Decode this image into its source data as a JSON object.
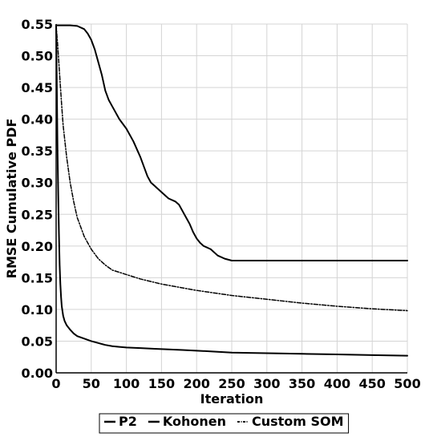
{
  "chart_data": {
    "type": "line",
    "title": "",
    "xlabel": "Iteration",
    "ylabel": "RMSE Cumulative PDF",
    "xlim": [
      0,
      500
    ],
    "ylim": [
      0,
      0.55
    ],
    "x_ticks": [
      "0",
      "50",
      "100",
      "150",
      "200",
      "250",
      "300",
      "350",
      "400",
      "450",
      "500"
    ],
    "y_ticks": [
      "0.00",
      "0.05",
      "0.10",
      "0.15",
      "0.20",
      "0.25",
      "0.30",
      "0.35",
      "0.40",
      "0.45",
      "0.50",
      "0.55"
    ],
    "grid": true,
    "legend_position": "bottom",
    "series": [
      {
        "name": "P2",
        "style": "solid",
        "points": [
          [
            0,
            0.548
          ],
          [
            10,
            0.548
          ],
          [
            20,
            0.548
          ],
          [
            30,
            0.547
          ],
          [
            40,
            0.542
          ],
          [
            45,
            0.535
          ],
          [
            50,
            0.525
          ],
          [
            55,
            0.51
          ],
          [
            60,
            0.49
          ],
          [
            65,
            0.47
          ],
          [
            70,
            0.445
          ],
          [
            75,
            0.43
          ],
          [
            80,
            0.42
          ],
          [
            90,
            0.4
          ],
          [
            100,
            0.385
          ],
          [
            110,
            0.365
          ],
          [
            120,
            0.34
          ],
          [
            125,
            0.325
          ],
          [
            130,
            0.31
          ],
          [
            135,
            0.3
          ],
          [
            140,
            0.295
          ],
          [
            150,
            0.285
          ],
          [
            160,
            0.275
          ],
          [
            170,
            0.27
          ],
          [
            175,
            0.265
          ],
          [
            180,
            0.255
          ],
          [
            185,
            0.245
          ],
          [
            190,
            0.235
          ],
          [
            195,
            0.222
          ],
          [
            200,
            0.212
          ],
          [
            205,
            0.205
          ],
          [
            210,
            0.2
          ],
          [
            220,
            0.195
          ],
          [
            230,
            0.185
          ],
          [
            240,
            0.18
          ],
          [
            250,
            0.177
          ],
          [
            300,
            0.177
          ],
          [
            350,
            0.177
          ],
          [
            400,
            0.177
          ],
          [
            450,
            0.177
          ],
          [
            500,
            0.177
          ]
        ]
      },
      {
        "name": "Kohonen",
        "style": "solid",
        "points": [
          [
            0,
            0.548
          ],
          [
            1,
            0.45
          ],
          [
            2,
            0.35
          ],
          [
            3,
            0.28
          ],
          [
            4,
            0.22
          ],
          [
            5,
            0.17
          ],
          [
            6,
            0.14
          ],
          [
            7,
            0.12
          ],
          [
            8,
            0.105
          ],
          [
            10,
            0.09
          ],
          [
            12,
            0.082
          ],
          [
            15,
            0.075
          ],
          [
            20,
            0.068
          ],
          [
            25,
            0.062
          ],
          [
            30,
            0.058
          ],
          [
            40,
            0.054
          ],
          [
            50,
            0.05
          ],
          [
            60,
            0.047
          ],
          [
            70,
            0.044
          ],
          [
            80,
            0.042
          ],
          [
            90,
            0.041
          ],
          [
            100,
            0.04
          ],
          [
            120,
            0.039
          ],
          [
            140,
            0.038
          ],
          [
            160,
            0.037
          ],
          [
            180,
            0.036
          ],
          [
            200,
            0.035
          ],
          [
            250,
            0.032
          ],
          [
            300,
            0.031
          ],
          [
            350,
            0.03
          ],
          [
            400,
            0.029
          ],
          [
            450,
            0.028
          ],
          [
            500,
            0.027
          ]
        ]
      },
      {
        "name": "Custom SOM",
        "style": "dashdot",
        "points": [
          [
            0,
            0.548
          ],
          [
            2,
            0.52
          ],
          [
            5,
            0.47
          ],
          [
            8,
            0.42
          ],
          [
            10,
            0.39
          ],
          [
            15,
            0.34
          ],
          [
            20,
            0.3
          ],
          [
            25,
            0.27
          ],
          [
            30,
            0.245
          ],
          [
            40,
            0.215
          ],
          [
            50,
            0.195
          ],
          [
            60,
            0.18
          ],
          [
            70,
            0.17
          ],
          [
            80,
            0.162
          ],
          [
            100,
            0.155
          ],
          [
            120,
            0.148
          ],
          [
            150,
            0.14
          ],
          [
            200,
            0.13
          ],
          [
            250,
            0.122
          ],
          [
            300,
            0.116
          ],
          [
            350,
            0.11
          ],
          [
            400,
            0.105
          ],
          [
            450,
            0.101
          ],
          [
            500,
            0.098
          ]
        ]
      }
    ]
  }
}
